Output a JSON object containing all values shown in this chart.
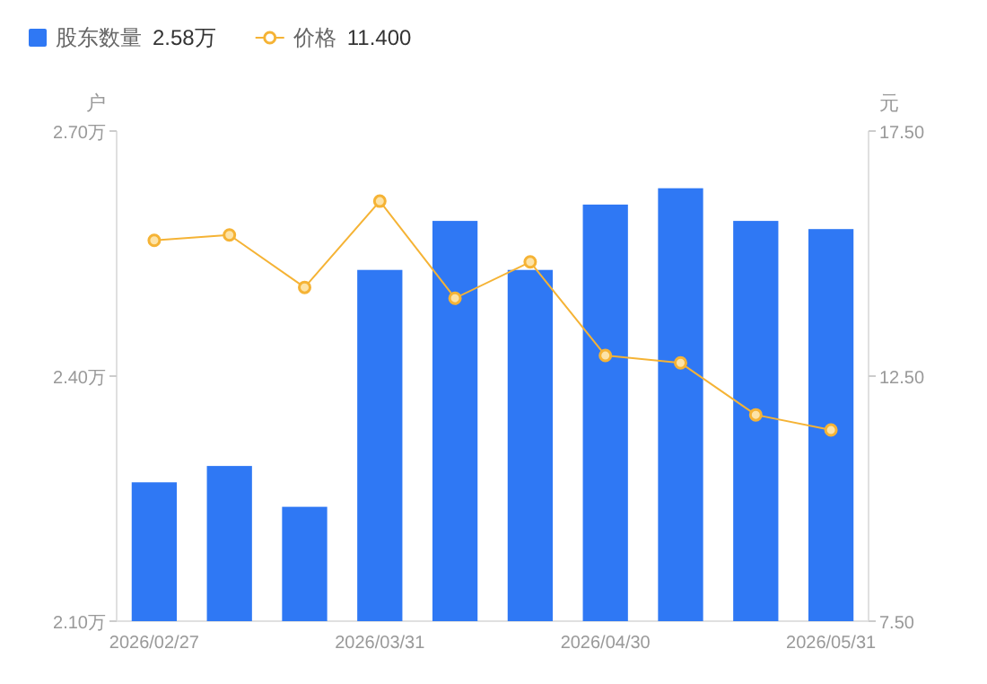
{
  "chart_data": {
    "type": "bar",
    "categories": [
      "2026/02/27",
      null,
      null,
      "2026/03/31",
      null,
      null,
      "2026/04/30",
      null,
      null,
      "2026/05/31"
    ],
    "series": [
      {
        "name": "股东数量",
        "color": "#2f78f4",
        "values": [
          2.27,
          2.29,
          2.24,
          2.53,
          2.59,
          2.53,
          2.61,
          2.63,
          2.59,
          2.58
        ]
      },
      {
        "name": "价格",
        "type": "line",
        "axis": "y2",
        "color": "#f5b335",
        "marker": "circle",
        "values": [
          15.27,
          15.38,
          14.31,
          16.07,
          14.09,
          14.83,
          12.92,
          12.77,
          11.71,
          11.4
        ]
      }
    ],
    "annotations": [
      "2.58万",
      "11.400"
    ],
    "ylabel": "户",
    "y2label": "元",
    "ylim": [
      2.1,
      2.7
    ],
    "yticks": [
      {
        "value": 2.1,
        "label": "2.10万"
      },
      {
        "value": 2.4,
        "label": "2.40万"
      },
      {
        "value": 2.7,
        "label": "2.70万"
      }
    ],
    "y2lim": [
      7.5,
      17.5
    ],
    "y2ticks": [
      {
        "value": 7.5,
        "label": "7.50"
      },
      {
        "value": 12.5,
        "label": "12.50"
      },
      {
        "value": 17.5,
        "label": "17.50"
      }
    ],
    "legend": "top left"
  }
}
